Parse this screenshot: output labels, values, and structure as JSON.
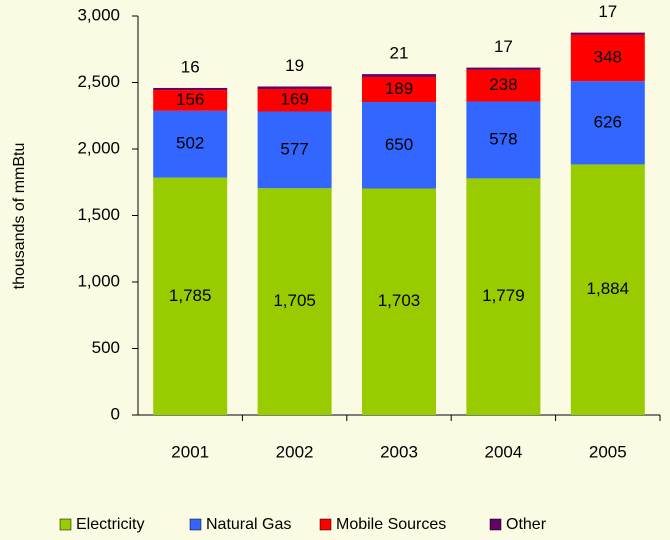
{
  "chart_data": {
    "type": "stacked_bar",
    "y_label": "thousands of mmBtu",
    "categories": [
      "2001",
      "2002",
      "2003",
      "2004",
      "2005"
    ],
    "series": [
      {
        "name": "Electricity",
        "color": "#99cc00",
        "values": [
          1785,
          1705,
          1703,
          1779,
          1884
        ],
        "value_labels": [
          "1,785",
          "1,705",
          "1,703",
          "1,779",
          "1,884"
        ]
      },
      {
        "name": "Natural Gas",
        "color": "#3366ff",
        "values": [
          502,
          577,
          650,
          578,
          626
        ]
      },
      {
        "name": "Mobile Sources",
        "color": "#ff0000",
        "values": [
          156,
          169,
          189,
          238,
          348
        ]
      },
      {
        "name": "Other",
        "color": "#660066",
        "values": [
          16,
          19,
          21,
          17,
          17
        ]
      }
    ],
    "ylim": [
      0,
      3000
    ],
    "yticks": [
      0,
      500,
      {
        "value": 1000,
        "label": "1,000"
      },
      {
        "value": 1500,
        "label": "1,500"
      },
      {
        "value": 2000,
        "label": "2,000"
      },
      {
        "value": 2500,
        "label": "2,500"
      },
      {
        "value": 3000,
        "label": "3,000"
      }
    ],
    "legend": "bottom"
  }
}
